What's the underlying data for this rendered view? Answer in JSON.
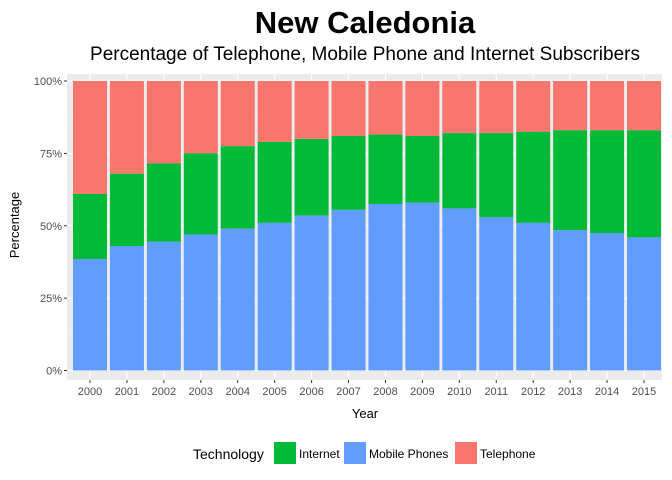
{
  "colors": {
    "panel": "#EBEBEB",
    "grid_major": "#FFFFFF",
    "grid_minor": "#F2F2F2",
    "Internet": "#00BA38",
    "Mobile Phones": "#619CFF",
    "Telephone": "#F8766D"
  },
  "chart_data": {
    "type": "bar",
    "stacked": true,
    "title": "New Caledonia",
    "subtitle": "Percentage of Telephone, Mobile Phone and Internet Subscribers",
    "xlabel": "Year",
    "ylabel": "Percentage",
    "ylim": [
      0,
      1
    ],
    "yticks": [
      0,
      0.25,
      0.5,
      0.75,
      1.0
    ],
    "ytick_labels": [
      "0%",
      "25%",
      "50%",
      "75%",
      "100%"
    ],
    "grid": true,
    "legend_position": "bottom",
    "legend_title": "Technology",
    "categories": [
      "2000",
      "2001",
      "2002",
      "2003",
      "2004",
      "2005",
      "2006",
      "2007",
      "2008",
      "2009",
      "2010",
      "2011",
      "2012",
      "2013",
      "2014",
      "2015"
    ],
    "series": [
      {
        "name": "Mobile Phones",
        "values": [
          0.385,
          0.43,
          0.445,
          0.47,
          0.49,
          0.51,
          0.535,
          0.555,
          0.575,
          0.58,
          0.56,
          0.53,
          0.51,
          0.485,
          0.475,
          0.46
        ]
      },
      {
        "name": "Internet",
        "values": [
          0.225,
          0.25,
          0.27,
          0.28,
          0.285,
          0.28,
          0.265,
          0.255,
          0.24,
          0.23,
          0.26,
          0.29,
          0.315,
          0.345,
          0.355,
          0.37
        ]
      },
      {
        "name": "Telephone",
        "values": [
          0.39,
          0.32,
          0.285,
          0.25,
          0.225,
          0.21,
          0.2,
          0.19,
          0.185,
          0.19,
          0.18,
          0.18,
          0.175,
          0.17,
          0.17,
          0.17
        ]
      }
    ],
    "legend_order": [
      "Internet",
      "Mobile Phones",
      "Telephone"
    ]
  }
}
